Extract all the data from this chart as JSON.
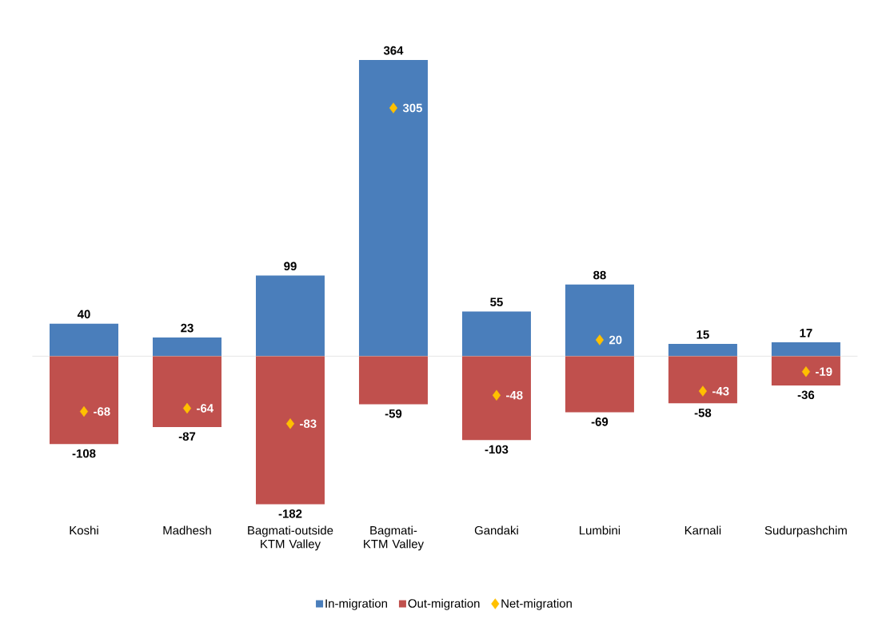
{
  "chart_data": {
    "type": "bar",
    "categories": [
      "Koshi",
      "Madhesh",
      "Bagmati-outside KTM Valley",
      "Bagmati-KTM Valley",
      "Gandaki",
      "Lumbini",
      "Karnali",
      "Sudurpashchim"
    ],
    "series": [
      {
        "name": "In-migration",
        "color": "#4a7ebb",
        "values": [
          40,
          23,
          99,
          364,
          55,
          88,
          15,
          17
        ]
      },
      {
        "name": "Out-migration",
        "color": "#c0504d",
        "values": [
          -108,
          -87,
          -182,
          -59,
          -103,
          -69,
          -58,
          -36
        ]
      },
      {
        "name": "Net-migration",
        "type": "scatter",
        "color": "#ffc000",
        "values": [
          -68,
          -64,
          -83,
          305,
          -48,
          20,
          -43,
          -19
        ]
      }
    ],
    "stacked": true,
    "data_labels": true,
    "legend": "bottom",
    "marker": "diamond"
  }
}
